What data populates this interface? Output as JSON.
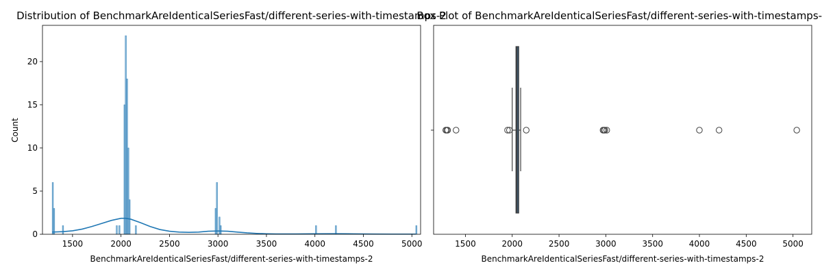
{
  "chart_data": [
    {
      "type": "histogram",
      "title": "Distribution of BenchmarkAreIdenticalSeriesFast/different-series-with-timestamps-2",
      "xlabel": "BenchmarkAreIdenticalSeriesFast/different-series-with-timestamps-2",
      "ylabel": "Count",
      "xlim": [
        1190,
        5090
      ],
      "ylim": [
        0,
        24.2
      ],
      "xticks": [
        1500,
        2000,
        2500,
        3000,
        3500,
        4000,
        4500,
        5000
      ],
      "yticks": [
        0,
        5,
        10,
        15,
        20
      ],
      "bin_width": 13,
      "bars": [
        {
          "x": 1290,
          "count": 6
        },
        {
          "x": 1303,
          "count": 3
        },
        {
          "x": 1395,
          "count": 1
        },
        {
          "x": 1950,
          "count": 1
        },
        {
          "x": 1977,
          "count": 1
        },
        {
          "x": 2030,
          "count": 15
        },
        {
          "x": 2043,
          "count": 23
        },
        {
          "x": 2056,
          "count": 18
        },
        {
          "x": 2069,
          "count": 10
        },
        {
          "x": 2082,
          "count": 4
        },
        {
          "x": 2147,
          "count": 1
        },
        {
          "x": 2970,
          "count": 3
        },
        {
          "x": 2983,
          "count": 6
        },
        {
          "x": 3009,
          "count": 2
        },
        {
          "x": 3022,
          "count": 1
        },
        {
          "x": 4005,
          "count": 1
        },
        {
          "x": 4210,
          "count": 1
        },
        {
          "x": 5040,
          "count": 1
        }
      ],
      "kde": {
        "x": [
          1290,
          1400,
          1500,
          1600,
          1700,
          1800,
          1900,
          2000,
          2050,
          2100,
          2200,
          2300,
          2400,
          2500,
          2600,
          2700,
          2800,
          2900,
          3000,
          3100,
          3200,
          3300,
          3400,
          3500,
          3600,
          3800,
          4000,
          4200,
          4400,
          4600,
          4800,
          5040
        ],
        "y": [
          0.25,
          0.3,
          0.4,
          0.6,
          0.9,
          1.25,
          1.6,
          1.85,
          1.85,
          1.75,
          1.35,
          0.9,
          0.55,
          0.35,
          0.25,
          0.22,
          0.25,
          0.35,
          0.38,
          0.35,
          0.25,
          0.16,
          0.1,
          0.06,
          0.04,
          0.04,
          0.06,
          0.07,
          0.05,
          0.03,
          0.02,
          0.02
        ]
      },
      "color": "#1f77b4"
    },
    {
      "type": "box",
      "title": "Box Plot of BenchmarkAreIdenticalSeriesFast/different-series-with-timestamps-2",
      "xlabel": "BenchmarkAreIdenticalSeriesFast/different-series-with-timestamps-2",
      "xlim": [
        1160,
        5200
      ],
      "xticks": [
        1500,
        2000,
        2500,
        3000,
        3500,
        4000,
        4500,
        5000
      ],
      "box": {
        "whisker_low": 2000,
        "q1": 2040,
        "median": 2050,
        "q3": 2065,
        "whisker_high": 2090
      },
      "outliers": [
        1290,
        1300,
        1310,
        1400,
        1950,
        1970,
        2150,
        2970,
        2980,
        2990,
        3010,
        4000,
        4210,
        5040
      ],
      "color": "#3d5a73"
    }
  ]
}
